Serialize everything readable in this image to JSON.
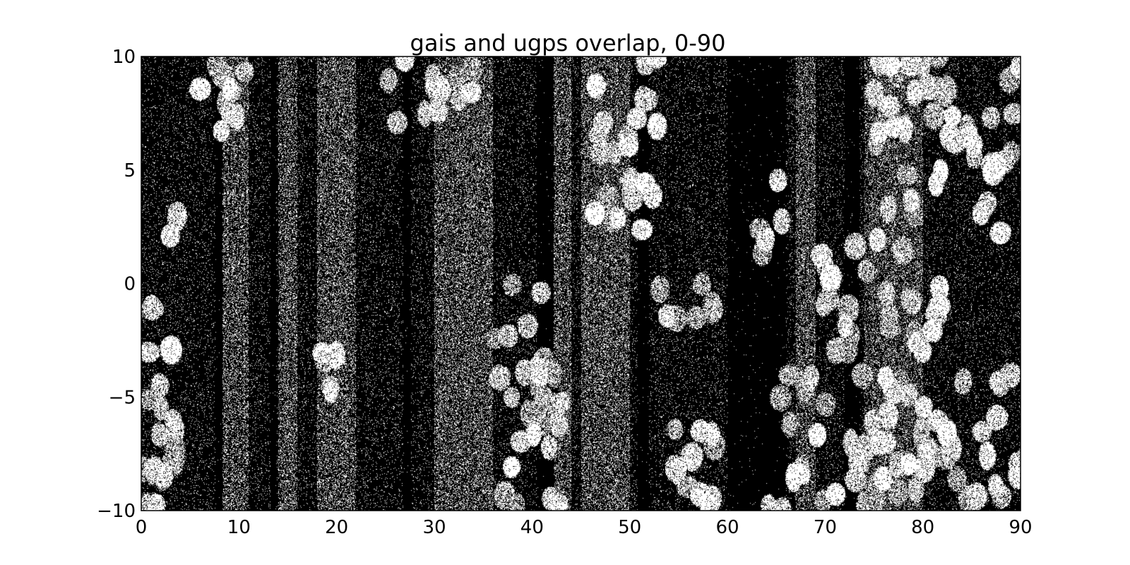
{
  "chart_data": {
    "type": "heatmap",
    "title": "gais and ugps overlap, 0-90",
    "xlabel": "",
    "ylabel": "",
    "xlim": [
      0,
      90
    ],
    "ylim": [
      -10,
      10
    ],
    "xticks": [
      0,
      10,
      20,
      30,
      40,
      50,
      60,
      70,
      80,
      90
    ],
    "yticks": [
      10,
      5,
      0,
      -5,
      -10
    ],
    "ytick_labels": [
      "10",
      "5",
      "0",
      "−5",
      "−10"
    ],
    "grid": false,
    "colormap": "binary (black background, white overlap points)",
    "colors": {
      "background": "#000000",
      "points": "#ffffff",
      "frame": "#000000"
    },
    "bright_regions": [
      {
        "x": [
          0,
          4
        ],
        "y": [
          -10,
          3
        ]
      },
      {
        "x": [
          5,
          11
        ],
        "y": [
          6,
          10
        ]
      },
      {
        "x": [
          17,
          20
        ],
        "y": [
          -7,
          -3
        ]
      },
      {
        "x": [
          23,
          34
        ],
        "y": [
          7,
          10
        ]
      },
      {
        "x": [
          36,
          43
        ],
        "y": [
          -10,
          0
        ]
      },
      {
        "x": [
          46,
          53
        ],
        "y": [
          2,
          10
        ]
      },
      {
        "x": [
          52,
          59
        ],
        "y": [
          -10,
          -6
        ]
      },
      {
        "x": [
          53,
          59
        ],
        "y": [
          -3,
          0
        ]
      },
      {
        "x": [
          63,
          66
        ],
        "y": [
          1,
          5
        ]
      },
      {
        "x": [
          64,
          90
        ],
        "y": [
          -10,
          -4
        ]
      },
      {
        "x": [
          69,
          82
        ],
        "y": [
          -3,
          2
        ]
      },
      {
        "x": [
          75,
          90
        ],
        "y": [
          3,
          10
        ]
      },
      {
        "x": [
          86,
          88
        ],
        "y": [
          2,
          5
        ]
      }
    ],
    "dense_vertical_bands": [
      [
        8,
        11
      ],
      [
        14,
        16
      ],
      [
        18,
        22
      ],
      [
        30,
        36
      ],
      [
        42,
        44
      ],
      [
        45,
        50
      ],
      [
        67,
        69
      ],
      [
        74,
        80
      ]
    ],
    "dark_vertical_gaps": [
      [
        7.6,
        8.3
      ],
      [
        13.2,
        13.8
      ],
      [
        26.8,
        27.6
      ],
      [
        40.5,
        42.2
      ],
      [
        50.8,
        52
      ],
      [
        60,
        66
      ],
      [
        72,
        73.5
      ]
    ]
  }
}
